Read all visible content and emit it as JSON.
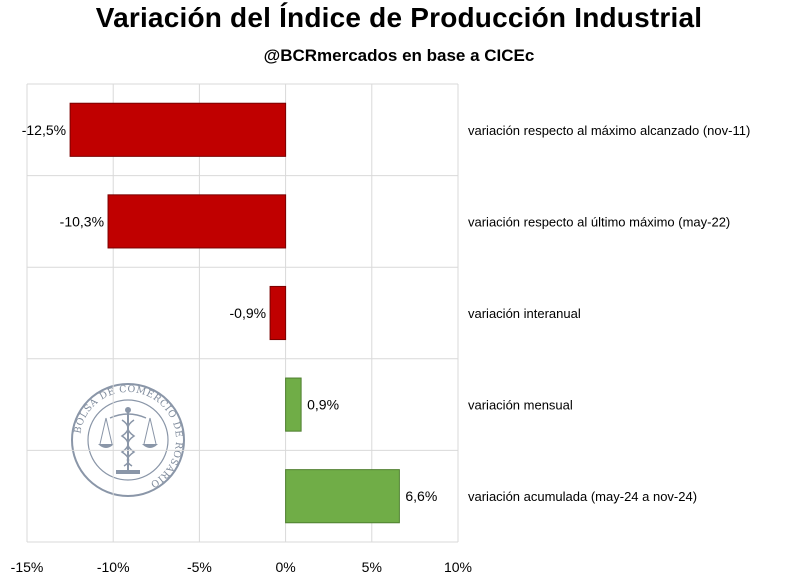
{
  "chart_data": {
    "type": "bar",
    "orientation": "horizontal",
    "title": "Variación del Índice de Producción Industrial",
    "subtitle": "@BCRmercados en base a CICEc",
    "categories": [
      "variación respecto al máximo alcanzado (nov-11)",
      "variación respecto al último máximo (may-22)",
      "variación interanual",
      "variación mensual",
      "variación acumulada (may-24 a nov-24)"
    ],
    "values": [
      -12.5,
      -10.3,
      -0.9,
      0.9,
      6.6
    ],
    "data_labels": [
      "-12,5%",
      "-10,3%",
      "-0,9%",
      "0,9%",
      "6,6%"
    ],
    "xlim": [
      -15,
      10
    ],
    "xticks": [
      -15,
      -10,
      -5,
      0,
      5,
      10
    ],
    "xtick_labels": [
      "-15%",
      "-10%",
      "-5%",
      "0%",
      "5%",
      "10%"
    ],
    "grid": true,
    "colors": {
      "negative": "#c00000",
      "positive": "#70ad47",
      "grid": "#d9d9d9",
      "seal": "#8a96a8"
    },
    "watermark": "BOLSA DE COMERCIO DE ROSARIO"
  }
}
